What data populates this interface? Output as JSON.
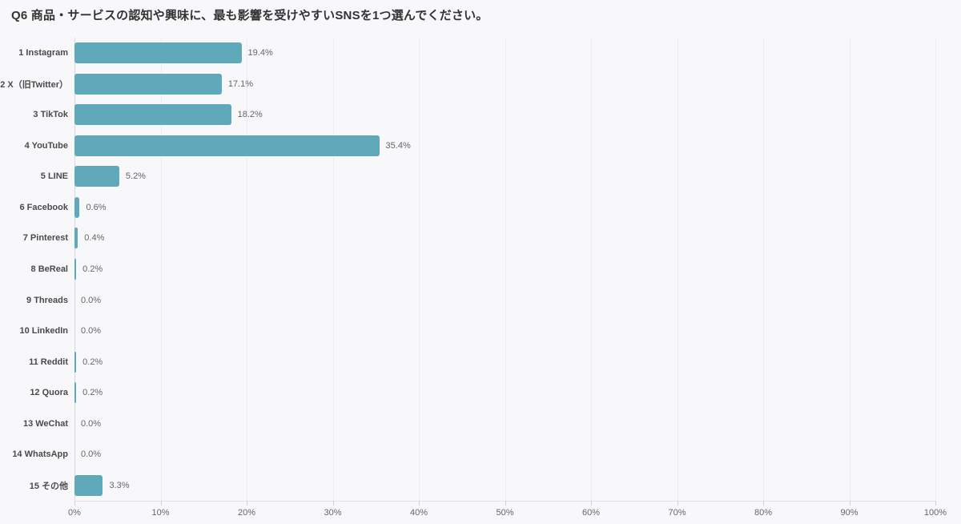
{
  "chart_data": {
    "type": "bar",
    "orientation": "horizontal",
    "title": "Q6 商品・サービスの認知や興味に、最も影響を受けやすいSNSを1つ選んでください。",
    "categories": [
      "1 Instagram",
      "2 X（旧Twitter）",
      "3 TikTok",
      "4 YouTube",
      "5 LINE",
      "6 Facebook",
      "7 Pinterest",
      "8 BeReal",
      "9 Threads",
      "10 LinkedIn",
      "11 Reddit",
      "12 Quora",
      "13 WeChat",
      "14 WhatsApp",
      "15 その他"
    ],
    "values": [
      19.4,
      17.1,
      18.2,
      35.4,
      5.2,
      0.6,
      0.4,
      0.2,
      0.0,
      0.0,
      0.2,
      0.2,
      0.0,
      0.0,
      3.3
    ],
    "value_labels": [
      "19.4%",
      "17.1%",
      "18.2%",
      "35.4%",
      "5.2%",
      "0.6%",
      "0.4%",
      "0.2%",
      "0.0%",
      "0.0%",
      "0.2%",
      "0.2%",
      "0.0%",
      "0.0%",
      "3.3%"
    ],
    "xlabel": "",
    "ylabel": "",
    "xlim": [
      0,
      100
    ],
    "x_ticks": [
      "0%",
      "10%",
      "20%",
      "30%",
      "40%",
      "50%",
      "60%",
      "70%",
      "80%",
      "90%",
      "100%"
    ],
    "grid": "vertical",
    "legend": "none",
    "colors": {
      "bar": "#5fa9ba",
      "background": "#f8f8fb",
      "gridline": "#ececf1",
      "axis_line": "#d5dade",
      "bottom_line": "#e2e2e8",
      "tick_mark": "#ccd3d8",
      "title_text": "#333333",
      "category_text": "#4a4a4a",
      "value_text": "#666666",
      "tick_text": "#666666"
    }
  }
}
